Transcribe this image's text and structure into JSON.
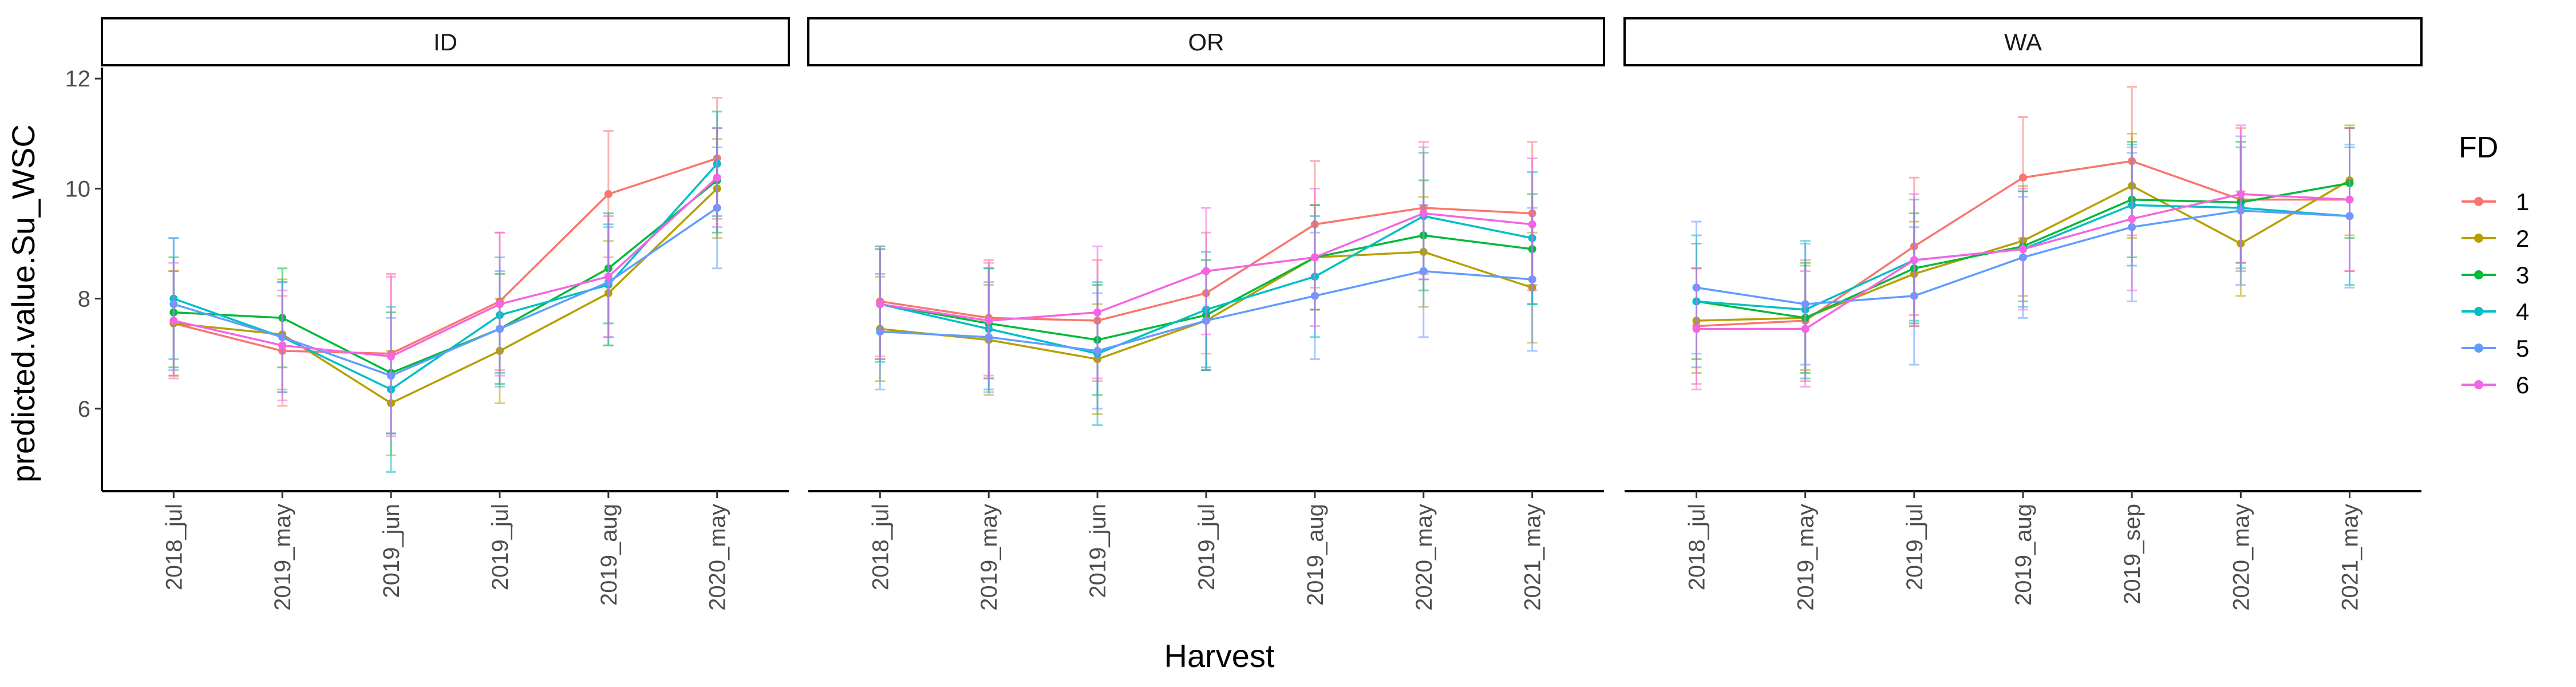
{
  "chart_data": {
    "type": "line",
    "xlabel": "Harvest",
    "ylabel": "predicted.value.Su_WSC",
    "ylim": [
      4.5,
      12.2
    ],
    "yticks": [
      6,
      8,
      10,
      12
    ],
    "grid": false,
    "error_bars": true,
    "legend": {
      "title": "FD",
      "placement": "right",
      "entries": [
        "1",
        "2",
        "3",
        "4",
        "5",
        "6"
      ]
    },
    "series_colors": {
      "1": "#F8766D",
      "2": "#B79F00",
      "3": "#00BA38",
      "4": "#00BFC4",
      "5": "#619CFF",
      "6": "#F564E3"
    },
    "panels": [
      {
        "name": "ID",
        "categories": [
          "2018_jul",
          "2019_may",
          "2019_jun",
          "2019_jul",
          "2019_aug",
          "2020_may"
        ],
        "series": [
          {
            "name": "1",
            "values": [
              7.55,
              7.05,
              7.0,
              7.95,
              9.9,
              10.55
            ],
            "errors": [
              0.95,
              1.0,
              1.45,
              1.25,
              1.15,
              1.1
            ]
          },
          {
            "name": "2",
            "values": [
              7.55,
              7.35,
              6.1,
              7.05,
              8.1,
              10.0
            ],
            "errors": [
              0.95,
              1.0,
              0.95,
              0.95,
              0.95,
              0.9
            ]
          },
          {
            "name": "3",
            "values": [
              7.75,
              7.65,
              6.65,
              7.45,
              8.55,
              10.15
            ],
            "errors": [
              1.0,
              0.9,
              1.1,
              1.0,
              1.0,
              0.95
            ]
          },
          {
            "name": "4",
            "values": [
              8.0,
              7.3,
              6.35,
              7.7,
              8.25,
              10.45
            ],
            "errors": [
              1.1,
              1.0,
              1.5,
              1.05,
              1.1,
              0.95
            ]
          },
          {
            "name": "5",
            "values": [
              7.9,
              7.3,
              6.6,
              7.45,
              8.3,
              9.65
            ],
            "errors": [
              1.2,
              1.0,
              1.05,
              1.05,
              1.0,
              1.1
            ]
          },
          {
            "name": "6",
            "values": [
              7.6,
              7.15,
              6.95,
              7.9,
              8.4,
              10.2
            ],
            "errors": [
              1.05,
              1.0,
              1.45,
              1.3,
              1.1,
              0.9
            ]
          }
        ]
      },
      {
        "name": "OR",
        "categories": [
          "2018_jul",
          "2019_may",
          "2019_jun",
          "2019_jul",
          "2019_aug",
          "2020_may",
          "2021_may"
        ],
        "series": [
          {
            "name": "1",
            "values": [
              7.95,
              7.65,
              7.6,
              8.1,
              9.35,
              9.65,
              9.55
            ],
            "errors": [
              1.0,
              1.05,
              1.1,
              1.1,
              1.15,
              1.2,
              1.3
            ]
          },
          {
            "name": "2",
            "values": [
              7.45,
              7.25,
              6.9,
              7.6,
              8.75,
              8.85,
              8.2
            ],
            "errors": [
              0.95,
              1.0,
              1.0,
              0.9,
              0.95,
              1.0,
              1.0
            ]
          },
          {
            "name": "3",
            "values": [
              7.9,
              7.55,
              7.25,
              7.7,
              8.75,
              9.15,
              8.9
            ],
            "errors": [
              1.0,
              1.0,
              1.0,
              1.0,
              0.95,
              1.0,
              1.0
            ]
          },
          {
            "name": "4",
            "values": [
              7.9,
              7.45,
              7.0,
              7.8,
              8.4,
              9.5,
              9.1
            ],
            "errors": [
              1.05,
              1.1,
              1.3,
              1.05,
              1.1,
              1.15,
              1.2
            ]
          },
          {
            "name": "5",
            "values": [
              7.4,
              7.3,
              7.05,
              7.6,
              8.05,
              8.5,
              8.35
            ],
            "errors": [
              1.05,
              1.0,
              1.05,
              0.9,
              1.15,
              1.2,
              1.3
            ]
          },
          {
            "name": "6",
            "values": [
              7.9,
              7.6,
              7.75,
              8.5,
              8.75,
              9.55,
              9.35
            ],
            "errors": [
              1.0,
              1.05,
              1.2,
              1.15,
              1.25,
              1.2,
              1.2
            ]
          }
        ]
      },
      {
        "name": "WA",
        "categories": [
          "2018_jul",
          "2019_may",
          "2019_jul",
          "2019_aug",
          "2019_sep",
          "2020_may",
          "2021_may"
        ],
        "series": [
          {
            "name": "1",
            "values": [
              7.5,
              7.6,
              8.95,
              10.2,
              10.5,
              9.8,
              9.8
            ],
            "errors": [
              1.05,
              1.1,
              1.25,
              1.1,
              1.35,
              1.3,
              1.3
            ]
          },
          {
            "name": "2",
            "values": [
              7.6,
              7.65,
              8.45,
              9.05,
              10.05,
              9.0,
              10.15
            ],
            "errors": [
              0.95,
              0.95,
              0.95,
              1.0,
              0.95,
              0.95,
              1.0
            ]
          },
          {
            "name": "3",
            "values": [
              7.95,
              7.65,
              8.55,
              8.95,
              9.8,
              9.75,
              10.1
            ],
            "errors": [
              1.05,
              1.0,
              1.0,
              1.0,
              1.05,
              1.1,
              1.0
            ]
          },
          {
            "name": "4",
            "values": [
              7.95,
              7.8,
              8.7,
              8.9,
              9.7,
              9.65,
              9.5
            ],
            "errors": [
              1.2,
              1.25,
              1.1,
              1.05,
              1.1,
              1.1,
              1.25
            ]
          },
          {
            "name": "5",
            "values": [
              8.2,
              7.9,
              8.05,
              8.75,
              9.3,
              9.6,
              9.5
            ],
            "errors": [
              1.2,
              1.1,
              1.25,
              1.1,
              1.35,
              1.35,
              1.3
            ]
          },
          {
            "name": "6",
            "values": [
              7.45,
              7.45,
              8.7,
              8.9,
              9.45,
              9.9,
              9.8
            ],
            "errors": [
              1.1,
              1.05,
              1.2,
              1.1,
              1.3,
              1.25,
              1.3
            ]
          }
        ]
      }
    ]
  }
}
